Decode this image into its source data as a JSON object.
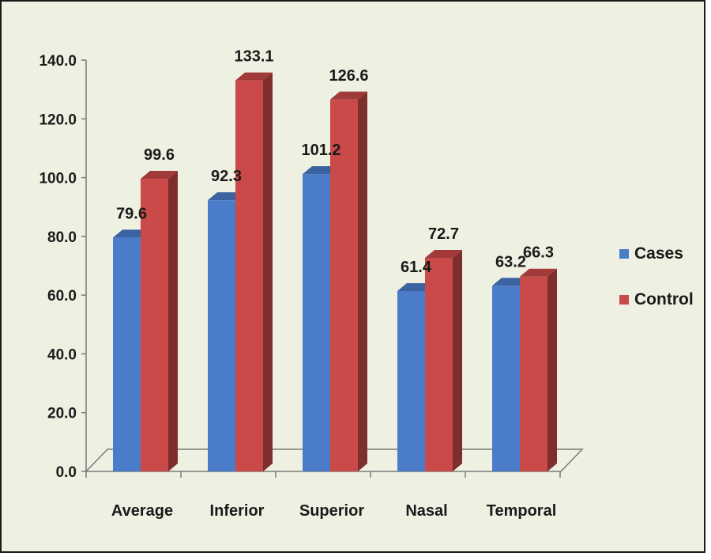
{
  "chart_data": {
    "type": "bar",
    "categories": [
      "Average",
      "Inferior",
      "Superior",
      "Nasal",
      "Temporal"
    ],
    "series": [
      {
        "name": "Cases",
        "color": "#4a7cc9",
        "values": [
          79.6,
          92.3,
          101.2,
          61.4,
          63.2
        ],
        "labels": [
          "79.6",
          "92.3",
          "101.2",
          "61.4",
          "63.2"
        ]
      },
      {
        "name": "Control",
        "color": "#c94a48",
        "values": [
          99.6,
          133.1,
          126.6,
          72.7,
          66.3
        ],
        "labels": [
          "99.6",
          "133.1",
          "126.6",
          "72.7",
          "66.3"
        ]
      }
    ],
    "yticks": [
      "0.0",
      "20.0",
      "40.0",
      "60.0",
      "80.0",
      "100.0",
      "120.0",
      "140.0"
    ],
    "ylim": [
      0,
      140
    ],
    "title": "",
    "xlabel": "",
    "ylabel": "",
    "legend_position": "right",
    "style": "3d-clustered-column",
    "grid": false
  }
}
